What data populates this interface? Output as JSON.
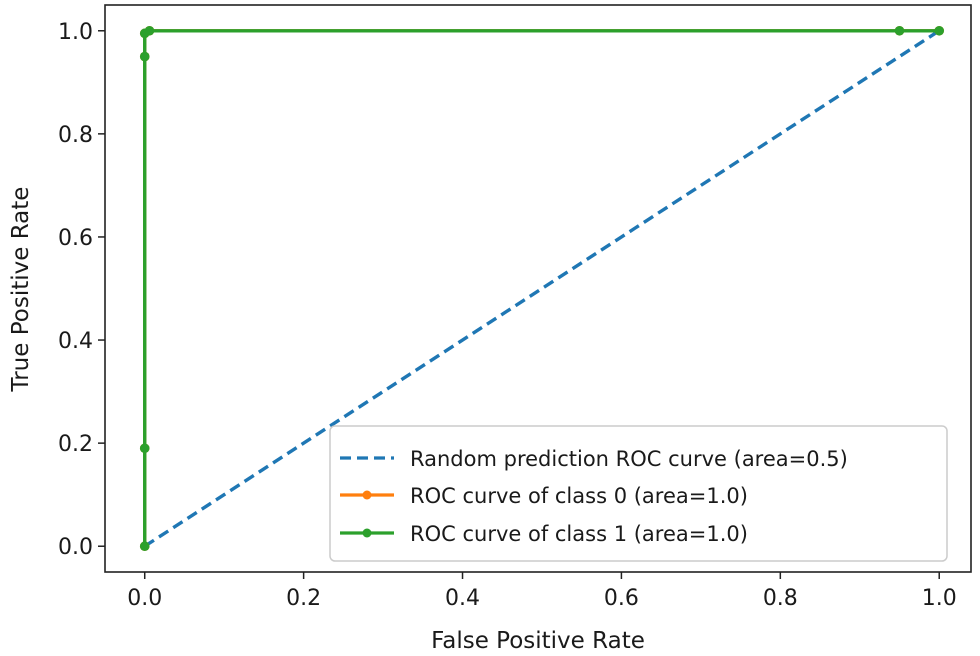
{
  "chart_data": {
    "type": "line",
    "title": "",
    "xlabel": "False Positive Rate",
    "ylabel": "True Positive Rate",
    "xlim": [
      -0.05,
      1.04
    ],
    "ylim": [
      -0.05,
      1.05
    ],
    "xticks": [
      0.0,
      0.2,
      0.4,
      0.6,
      0.8,
      1.0
    ],
    "yticks": [
      0.0,
      0.2,
      0.4,
      0.6,
      0.8,
      1.0
    ],
    "xtick_labels": [
      "0.0",
      "0.2",
      "0.4",
      "0.6",
      "0.8",
      "1.0"
    ],
    "ytick_labels": [
      "0.0",
      "0.2",
      "0.4",
      "0.6",
      "0.8",
      "1.0"
    ],
    "grid": false,
    "legend_position": "lower-right",
    "series": [
      {
        "name": "Random prediction ROC curve (area=0.5)",
        "color": "#1f77b4",
        "style": "dashed",
        "markers": false,
        "x": [
          0.0,
          1.0
        ],
        "y": [
          0.0,
          1.0
        ]
      },
      {
        "name": "ROC curve of class 0 (area=1.0)",
        "color": "#ff7f0e",
        "style": "solid",
        "markers": true,
        "x": [
          0.0,
          0.0,
          0.0,
          0.0,
          0.006,
          0.95,
          1.0
        ],
        "y": [
          0.0,
          0.19,
          0.95,
          0.995,
          1.0,
          1.0,
          1.0
        ]
      },
      {
        "name": "ROC curve of class 1 (area=1.0)",
        "color": "#2ca02c",
        "style": "solid",
        "markers": true,
        "x": [
          0.0,
          0.0,
          0.0,
          0.0,
          0.006,
          0.95,
          1.0
        ],
        "y": [
          0.0,
          0.19,
          0.95,
          0.995,
          1.0,
          1.0,
          1.0
        ]
      }
    ]
  }
}
